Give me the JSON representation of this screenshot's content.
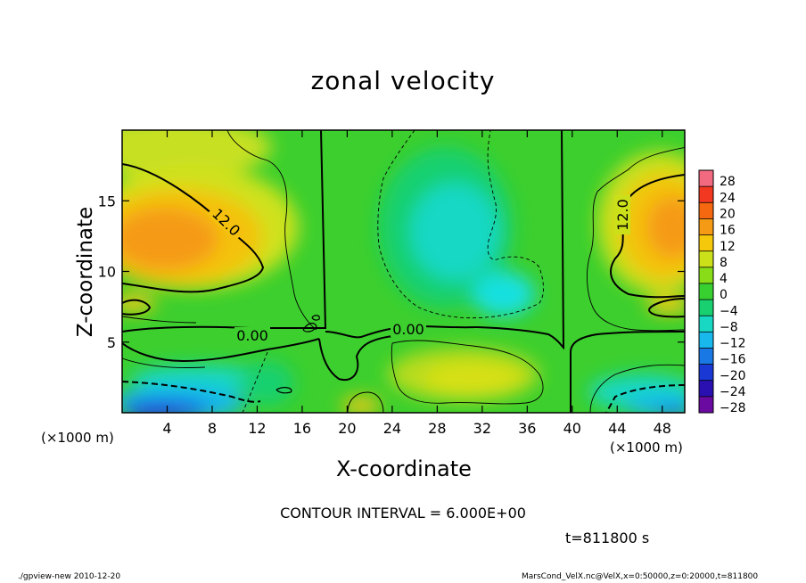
{
  "chart_data": {
    "type": "heatmap",
    "title": "zonal velocity",
    "xlabel": "X-coordinate",
    "ylabel": "Z-coordinate",
    "x_unit": "(×1000 m)",
    "y_unit": "(×1000 m)",
    "xlim": [
      0,
      50
    ],
    "ylim": [
      0,
      20
    ],
    "x_ticks": [
      4,
      8,
      12,
      16,
      20,
      24,
      28,
      32,
      36,
      40,
      44,
      48
    ],
    "y_ticks": [
      5,
      10,
      15
    ],
    "colorbar": {
      "levels": [
        28,
        24,
        20,
        16,
        12,
        8,
        4,
        0,
        -4,
        -8,
        -12,
        -16,
        -20,
        -24,
        -28
      ],
      "colors": [
        "#f26a80",
        "#f23820",
        "#f56810",
        "#f59a14",
        "#f6c80c",
        "#cce01a",
        "#88dc18",
        "#38d030",
        "#18d070",
        "#18d8c4",
        "#18b8ec",
        "#1a78e4",
        "#1a38d4",
        "#2a10b0",
        "#6a0aa0"
      ]
    },
    "contour_labels": [
      {
        "text": "12.0",
        "x": 9,
        "z": 13
      },
      {
        "text": "12.0",
        "x": 44.5,
        "z": 14
      },
      {
        "text": "0.00",
        "x": 11.5,
        "z": 5.6
      },
      {
        "text": "0.00",
        "x": 25.5,
        "z": 6
      }
    ]
  },
  "annotation": "CONTOUR INTERVAL = 6.000E+00",
  "time_label": "t=811800 s",
  "footer_left": "./gpview-new  2010-12-20",
  "footer_right": "MarsCond_VelX.nc@VelX,x=0:50000,z=0:20000,t=811800"
}
